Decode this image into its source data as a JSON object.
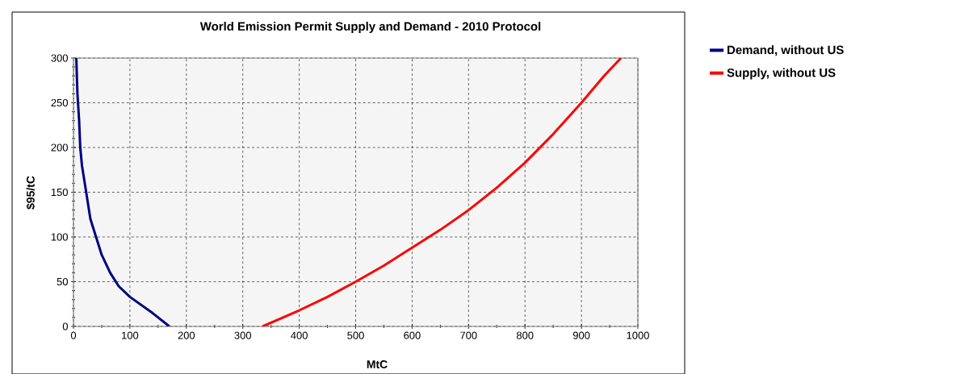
{
  "chart_data": {
    "type": "line",
    "title": "World Emission Permit Supply and Demand - 2010 Protocol",
    "xlabel": "MtC",
    "ylabel": "$95/tC",
    "series": [
      {
        "name": "Demand, without US",
        "color": "#000080",
        "x": [
          170,
          140,
          100,
          80,
          65,
          50,
          40,
          30,
          25,
          20,
          15,
          12,
          10,
          7,
          5
        ],
        "values": [
          0,
          15,
          33,
          45,
          60,
          80,
          100,
          120,
          140,
          160,
          180,
          200,
          230,
          260,
          300
        ]
      },
      {
        "name": "Supply, without US",
        "color": "#ff0000",
        "x": [
          335,
          400,
          450,
          500,
          550,
          600,
          650,
          700,
          750,
          800,
          850,
          900,
          940,
          970
        ],
        "values": [
          0,
          18,
          33,
          50,
          68,
          88,
          108,
          130,
          155,
          183,
          215,
          250,
          280,
          300
        ]
      }
    ],
    "xlim": [
      0,
      1000
    ],
    "ylim": [
      0,
      300
    ],
    "xticks": [
      0,
      100,
      200,
      300,
      400,
      500,
      600,
      700,
      800,
      900,
      1000
    ],
    "yticks": [
      0,
      50,
      100,
      150,
      200,
      250,
      300
    ],
    "grid": true,
    "legend": "top right",
    "marker": "none",
    "line_style": "solid"
  }
}
